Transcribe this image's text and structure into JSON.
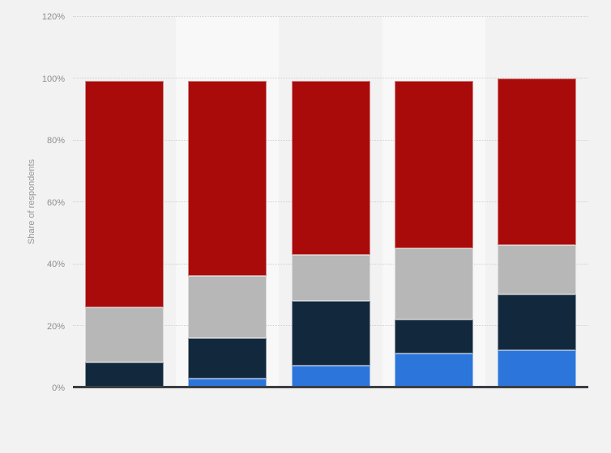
{
  "chart": {
    "ylabel": "Share of respondents",
    "yticks": [
      "0%",
      "20%",
      "40%",
      "60%",
      "80%",
      "100%",
      "120%"
    ],
    "background_color": "#f2f2f2",
    "band_color": "#f8f8f8",
    "gridline_color": "#cfcfcf",
    "axis_line_color": "#3b3e43",
    "tick_text_color": "#8f8f8f"
  },
  "chart_data": {
    "type": "bar",
    "stacked": true,
    "title": "",
    "xlabel": "",
    "ylabel": "Share of respondents",
    "ylim": [
      0,
      120
    ],
    "ytick_step": 20,
    "ytick_format": "percent",
    "grid": "horizontal-dotted",
    "legend": "none",
    "categories": [
      "",
      "",
      "",
      "",
      ""
    ],
    "series": [
      {
        "name": "blue",
        "color": "#2c75db",
        "values": [
          0,
          3,
          7,
          11,
          12
        ]
      },
      {
        "name": "dark-blue",
        "color": "#12293d",
        "values": [
          8,
          13,
          21,
          11,
          18
        ]
      },
      {
        "name": "gray",
        "color": "#b7b7b7",
        "values": [
          18,
          20,
          15,
          23,
          16
        ]
      },
      {
        "name": "red",
        "color": "#a90b0b",
        "values": [
          73,
          63,
          56,
          54,
          54
        ]
      }
    ],
    "stack_totals": [
      99,
      99,
      99,
      99,
      100
    ]
  }
}
